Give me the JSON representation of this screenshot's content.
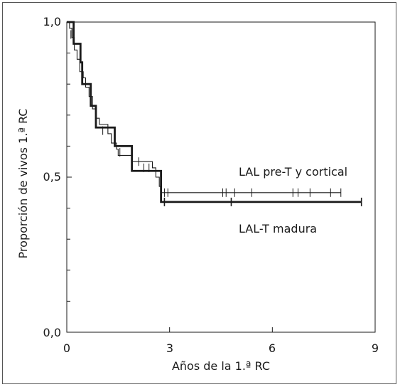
{
  "chart_data": {
    "type": "line",
    "subtype": "kaplan-meier",
    "title": "",
    "xlabel": "Años de la 1.ª RC",
    "ylabel": "Proporción de vivos 1.ª RC",
    "xlim": [
      0,
      9
    ],
    "ylim": [
      0,
      1
    ],
    "x_ticks": [
      0,
      3,
      6,
      9
    ],
    "x_tick_labels": [
      "0",
      "3",
      "6",
      "9"
    ],
    "y_ticks": [
      0,
      0.5,
      1
    ],
    "y_tick_labels": [
      "0,0",
      "0,5",
      "1,0"
    ],
    "grid": false,
    "legend": "inline labels",
    "series": [
      {
        "name": "LAL pre-T y cortical",
        "line": "thin",
        "steps": [
          [
            0,
            1.0
          ],
          [
            0.08,
            0.98
          ],
          [
            0.15,
            0.95
          ],
          [
            0.22,
            0.91
          ],
          [
            0.3,
            0.88
          ],
          [
            0.38,
            0.84
          ],
          [
            0.48,
            0.82
          ],
          [
            0.55,
            0.79
          ],
          [
            0.65,
            0.76
          ],
          [
            0.75,
            0.72
          ],
          [
            0.85,
            0.69
          ],
          [
            0.95,
            0.67
          ],
          [
            1.2,
            0.64
          ],
          [
            1.3,
            0.61
          ],
          [
            1.45,
            0.59
          ],
          [
            1.5,
            0.57
          ],
          [
            1.9,
            0.55
          ],
          [
            2.5,
            0.53
          ],
          [
            2.6,
            0.5
          ],
          [
            2.7,
            0.47
          ],
          [
            2.75,
            0.45
          ],
          [
            8.0,
            0.45
          ]
        ],
        "censored": [
          [
            0.12,
            0.96
          ],
          [
            0.45,
            0.83
          ],
          [
            1.05,
            0.65
          ],
          [
            1.55,
            0.58
          ],
          [
            2.1,
            0.55
          ],
          [
            2.25,
            0.53
          ],
          [
            2.4,
            0.53
          ],
          [
            2.85,
            0.45
          ],
          [
            2.95,
            0.45
          ],
          [
            4.55,
            0.45
          ],
          [
            4.65,
            0.45
          ],
          [
            4.9,
            0.45
          ],
          [
            5.4,
            0.45
          ],
          [
            6.6,
            0.45
          ],
          [
            6.75,
            0.45
          ],
          [
            7.1,
            0.45
          ],
          [
            7.7,
            0.45
          ],
          [
            8.0,
            0.45
          ]
        ]
      },
      {
        "name": "LAL-T madura",
        "line": "thick",
        "steps": [
          [
            0,
            1.0
          ],
          [
            0.2,
            0.93
          ],
          [
            0.4,
            0.87
          ],
          [
            0.45,
            0.8
          ],
          [
            0.7,
            0.73
          ],
          [
            0.85,
            0.66
          ],
          [
            1.4,
            0.6
          ],
          [
            1.9,
            0.52
          ],
          [
            2.75,
            0.42
          ],
          [
            8.6,
            0.42
          ]
        ],
        "censored": [
          [
            2.85,
            0.42
          ],
          [
            4.8,
            0.42
          ],
          [
            8.6,
            0.42
          ]
        ]
      }
    ]
  }
}
